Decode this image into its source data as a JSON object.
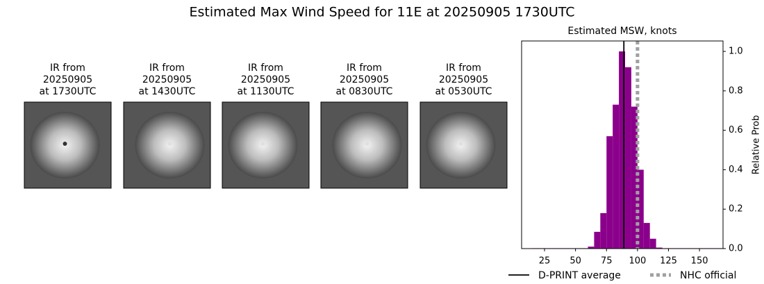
{
  "title": "Estimated Max Wind Speed for 11E at 20250905 1730UTC",
  "panels": [
    {
      "lines": [
        "IR from",
        "20250905",
        "at 1730UTC"
      ]
    },
    {
      "lines": [
        "IR from",
        "20250905",
        "at 1430UTC"
      ]
    },
    {
      "lines": [
        "IR from",
        "20250905",
        "at 1130UTC"
      ]
    },
    {
      "lines": [
        "IR from",
        "20250905",
        "at 0830UTC"
      ]
    },
    {
      "lines": [
        "IR from",
        "20250905",
        "at 0530UTC"
      ]
    }
  ],
  "chart_data": {
    "type": "histogram",
    "title": "Estimated MSW, knots",
    "y_label": "Relative Prob",
    "color": "#8b008b",
    "bins": [
      15,
      20,
      25,
      30,
      35,
      40,
      45,
      50,
      55,
      60,
      65,
      70,
      75,
      80,
      85,
      90,
      95,
      100,
      105,
      110,
      115,
      120,
      125,
      130,
      135,
      140,
      145,
      150,
      155,
      160,
      165,
      170
    ],
    "values": [
      0.002,
      0.002,
      0.002,
      0.002,
      0.002,
      0.002,
      0.002,
      0.002,
      0.002,
      0.01,
      0.085,
      0.18,
      0.57,
      0.73,
      1.0,
      0.92,
      0.72,
      0.4,
      0.13,
      0.05,
      0.005,
      0.002,
      0.002,
      0.002,
      0.002,
      0.002,
      0.002,
      0.002,
      0.002,
      0.002,
      0.002
    ],
    "lines": [
      {
        "name": "D-PRINT average",
        "value": 89,
        "color": "#000000",
        "style": "solid"
      },
      {
        "name": "NHC official",
        "value": 100,
        "color": "#a0a0a0",
        "style": "dotted"
      }
    ],
    "xlim": [
      6.5,
      169
    ],
    "ylim": [
      0,
      1.053
    ],
    "xticks": [
      25,
      50,
      75,
      100,
      125,
      150
    ],
    "yticks": [
      {
        "value": 0,
        "label": "0.0"
      },
      {
        "value": 0.2,
        "label": "0.2"
      },
      {
        "value": 0.4,
        "label": "0.4"
      },
      {
        "value": 0.6,
        "label": "0.6"
      },
      {
        "value": 0.8,
        "label": "0.8"
      },
      {
        "value": 1.0,
        "label": "1.0"
      }
    ]
  }
}
